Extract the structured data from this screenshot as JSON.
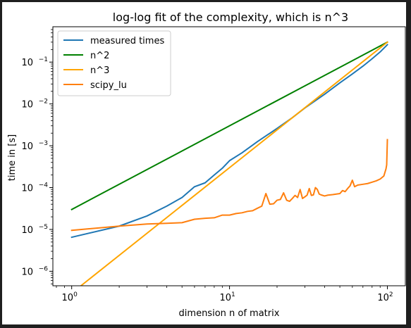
{
  "chart_data": {
    "type": "line",
    "title": "log-log fit of the complexity, which is n^3",
    "xlabel": "dimension n of matrix",
    "ylabel": "time in [s]",
    "xscale": "log",
    "yscale": "log",
    "xlim": [
      0.76,
      130
    ],
    "ylim": [
      4.5e-07,
      0.7
    ],
    "grid": false,
    "legend_position": "top-left",
    "x_ticks": [
      {
        "value": 1,
        "base": "10",
        "exp": "0"
      },
      {
        "value": 10,
        "base": "10",
        "exp": "1"
      },
      {
        "value": 100,
        "base": "10",
        "exp": "2"
      }
    ],
    "y_ticks": [
      {
        "value": 1e-06,
        "base": "10",
        "exp": "−6"
      },
      {
        "value": 1e-05,
        "base": "10",
        "exp": "−5"
      },
      {
        "value": 0.0001,
        "base": "10",
        "exp": "−4"
      },
      {
        "value": 0.001,
        "base": "10",
        "exp": "−3"
      },
      {
        "value": 0.01,
        "base": "10",
        "exp": "−2"
      },
      {
        "value": 0.1,
        "base": "10",
        "exp": "−1"
      }
    ],
    "series": [
      {
        "name": "measured times",
        "color": "#1f77b4",
        "points": [
          [
            1,
            6.5e-06
          ],
          [
            2,
            1.2e-05
          ],
          [
            3,
            2.1e-05
          ],
          [
            4,
            3.6e-05
          ],
          [
            5,
            5.8e-05
          ],
          [
            6,
            0.000105
          ],
          [
            7,
            0.00013
          ],
          [
            8,
            0.0002
          ],
          [
            9,
            0.00029
          ],
          [
            10,
            0.00044
          ],
          [
            12,
            0.00068
          ],
          [
            15,
            0.00125
          ],
          [
            20,
            0.0026
          ],
          [
            25,
            0.0047
          ],
          [
            30,
            0.008
          ],
          [
            40,
            0.017
          ],
          [
            50,
            0.032
          ],
          [
            60,
            0.052
          ],
          [
            70,
            0.08
          ],
          [
            80,
            0.12
          ],
          [
            90,
            0.175
          ],
          [
            100,
            0.26
          ]
        ]
      },
      {
        "name": "n^2",
        "color": "#008000",
        "points": [
          [
            1,
            3e-05
          ],
          [
            100,
            0.3
          ]
        ]
      },
      {
        "name": "n^3",
        "color": "#ffa500",
        "points": [
          [
            1,
            3e-07
          ],
          [
            100,
            0.3
          ]
        ]
      },
      {
        "name": "scipy_lu",
        "color": "#ff7f0e",
        "points": [
          [
            1,
            9.5e-06
          ],
          [
            2,
            1.2e-05
          ],
          [
            3,
            1.35e-05
          ],
          [
            4,
            1.4e-05
          ],
          [
            5,
            1.45e-05
          ],
          [
            6,
            1.75e-05
          ],
          [
            7,
            1.85e-05
          ],
          [
            8,
            1.9e-05
          ],
          [
            9,
            2.2e-05
          ],
          [
            10,
            2.2e-05
          ],
          [
            11,
            2.4e-05
          ],
          [
            12,
            2.5e-05
          ],
          [
            13,
            2.7e-05
          ],
          [
            14,
            2.8e-05
          ],
          [
            15,
            3.2e-05
          ],
          [
            16,
            3.6e-05
          ],
          [
            17,
            7.2e-05
          ],
          [
            18,
            4e-05
          ],
          [
            19,
            4.1e-05
          ],
          [
            20,
            5e-05
          ],
          [
            21,
            5.2e-05
          ],
          [
            22,
            7.5e-05
          ],
          [
            23,
            5e-05
          ],
          [
            24,
            4.7e-05
          ],
          [
            25,
            5.5e-05
          ],
          [
            26,
            6.5e-05
          ],
          [
            27,
            5.8e-05
          ],
          [
            28,
            9e-05
          ],
          [
            29,
            5.5e-05
          ],
          [
            30,
            6e-05
          ],
          [
            31,
            6.6e-05
          ],
          [
            32,
            9.5e-05
          ],
          [
            33,
            6.5e-05
          ],
          [
            34,
            6.7e-05
          ],
          [
            35,
            0.0001
          ],
          [
            36,
            9e-05
          ],
          [
            37,
            7e-05
          ],
          [
            38,
            6.7e-05
          ],
          [
            40,
            6.3e-05
          ],
          [
            42,
            6.6e-05
          ],
          [
            45,
            6.8e-05
          ],
          [
            50,
            7.2e-05
          ],
          [
            52,
            8.5e-05
          ],
          [
            54,
            8e-05
          ],
          [
            56,
            9.5e-05
          ],
          [
            58,
            0.00011
          ],
          [
            60,
            0.00015
          ],
          [
            62,
            0.000105
          ],
          [
            65,
            0.000115
          ],
          [
            70,
            0.00012
          ],
          [
            75,
            0.000125
          ],
          [
            80,
            0.000135
          ],
          [
            85,
            0.000145
          ],
          [
            90,
            0.00016
          ],
          [
            95,
            0.00019
          ],
          [
            98,
            0.00028
          ],
          [
            99,
            0.00035
          ],
          [
            100,
            0.0014
          ]
        ]
      }
    ]
  }
}
